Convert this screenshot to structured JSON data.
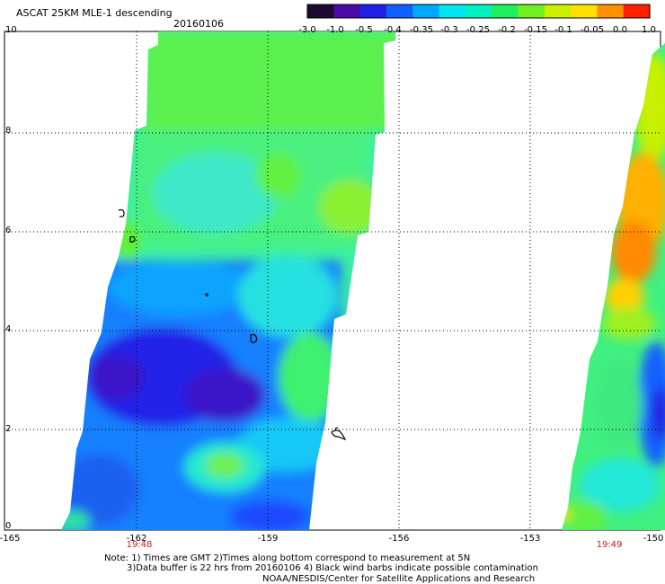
{
  "header": {
    "title": "ASCAT 25KM MLE-1 descending",
    "date": "20160106"
  },
  "colorbar": {
    "tick_labels": [
      "-3.0",
      "-1.0",
      "-0.5",
      "-0.4",
      "-0.35",
      "-0.3",
      "-0.25",
      "-0.2",
      "-0.15",
      "-0.1",
      "-0.05",
      "0.0",
      "1.0"
    ],
    "colors": [
      "#1b0b2e",
      "#4a0aa8",
      "#1f20e6",
      "#1060ff",
      "#00a8ff",
      "#00e4f0",
      "#00f0c0",
      "#20f060",
      "#70f020",
      "#c8f000",
      "#ffe000",
      "#ff9000",
      "#ff2000"
    ]
  },
  "map": {
    "x_tick_labels": [
      "-165",
      "-162",
      "-159",
      "-156",
      "-153",
      "-150"
    ],
    "y_tick_labels": [
      "10",
      "8",
      "6",
      "4",
      "2",
      "0"
    ],
    "pass_times": [
      "19:48",
      "19:49"
    ],
    "time_color": "#c81e1e",
    "grid_style": "dotted"
  },
  "notes": {
    "line1": "Note: 1) Times are GMT 2)Times along bottom correspond to measurement at 5N",
    "line2": "3)Data buffer is 22 hrs from 20160106 4) Black wind barbs indicate possible contamination",
    "line3": "NOAA/NESDIS/Center for Satellite Applications and Research"
  }
}
